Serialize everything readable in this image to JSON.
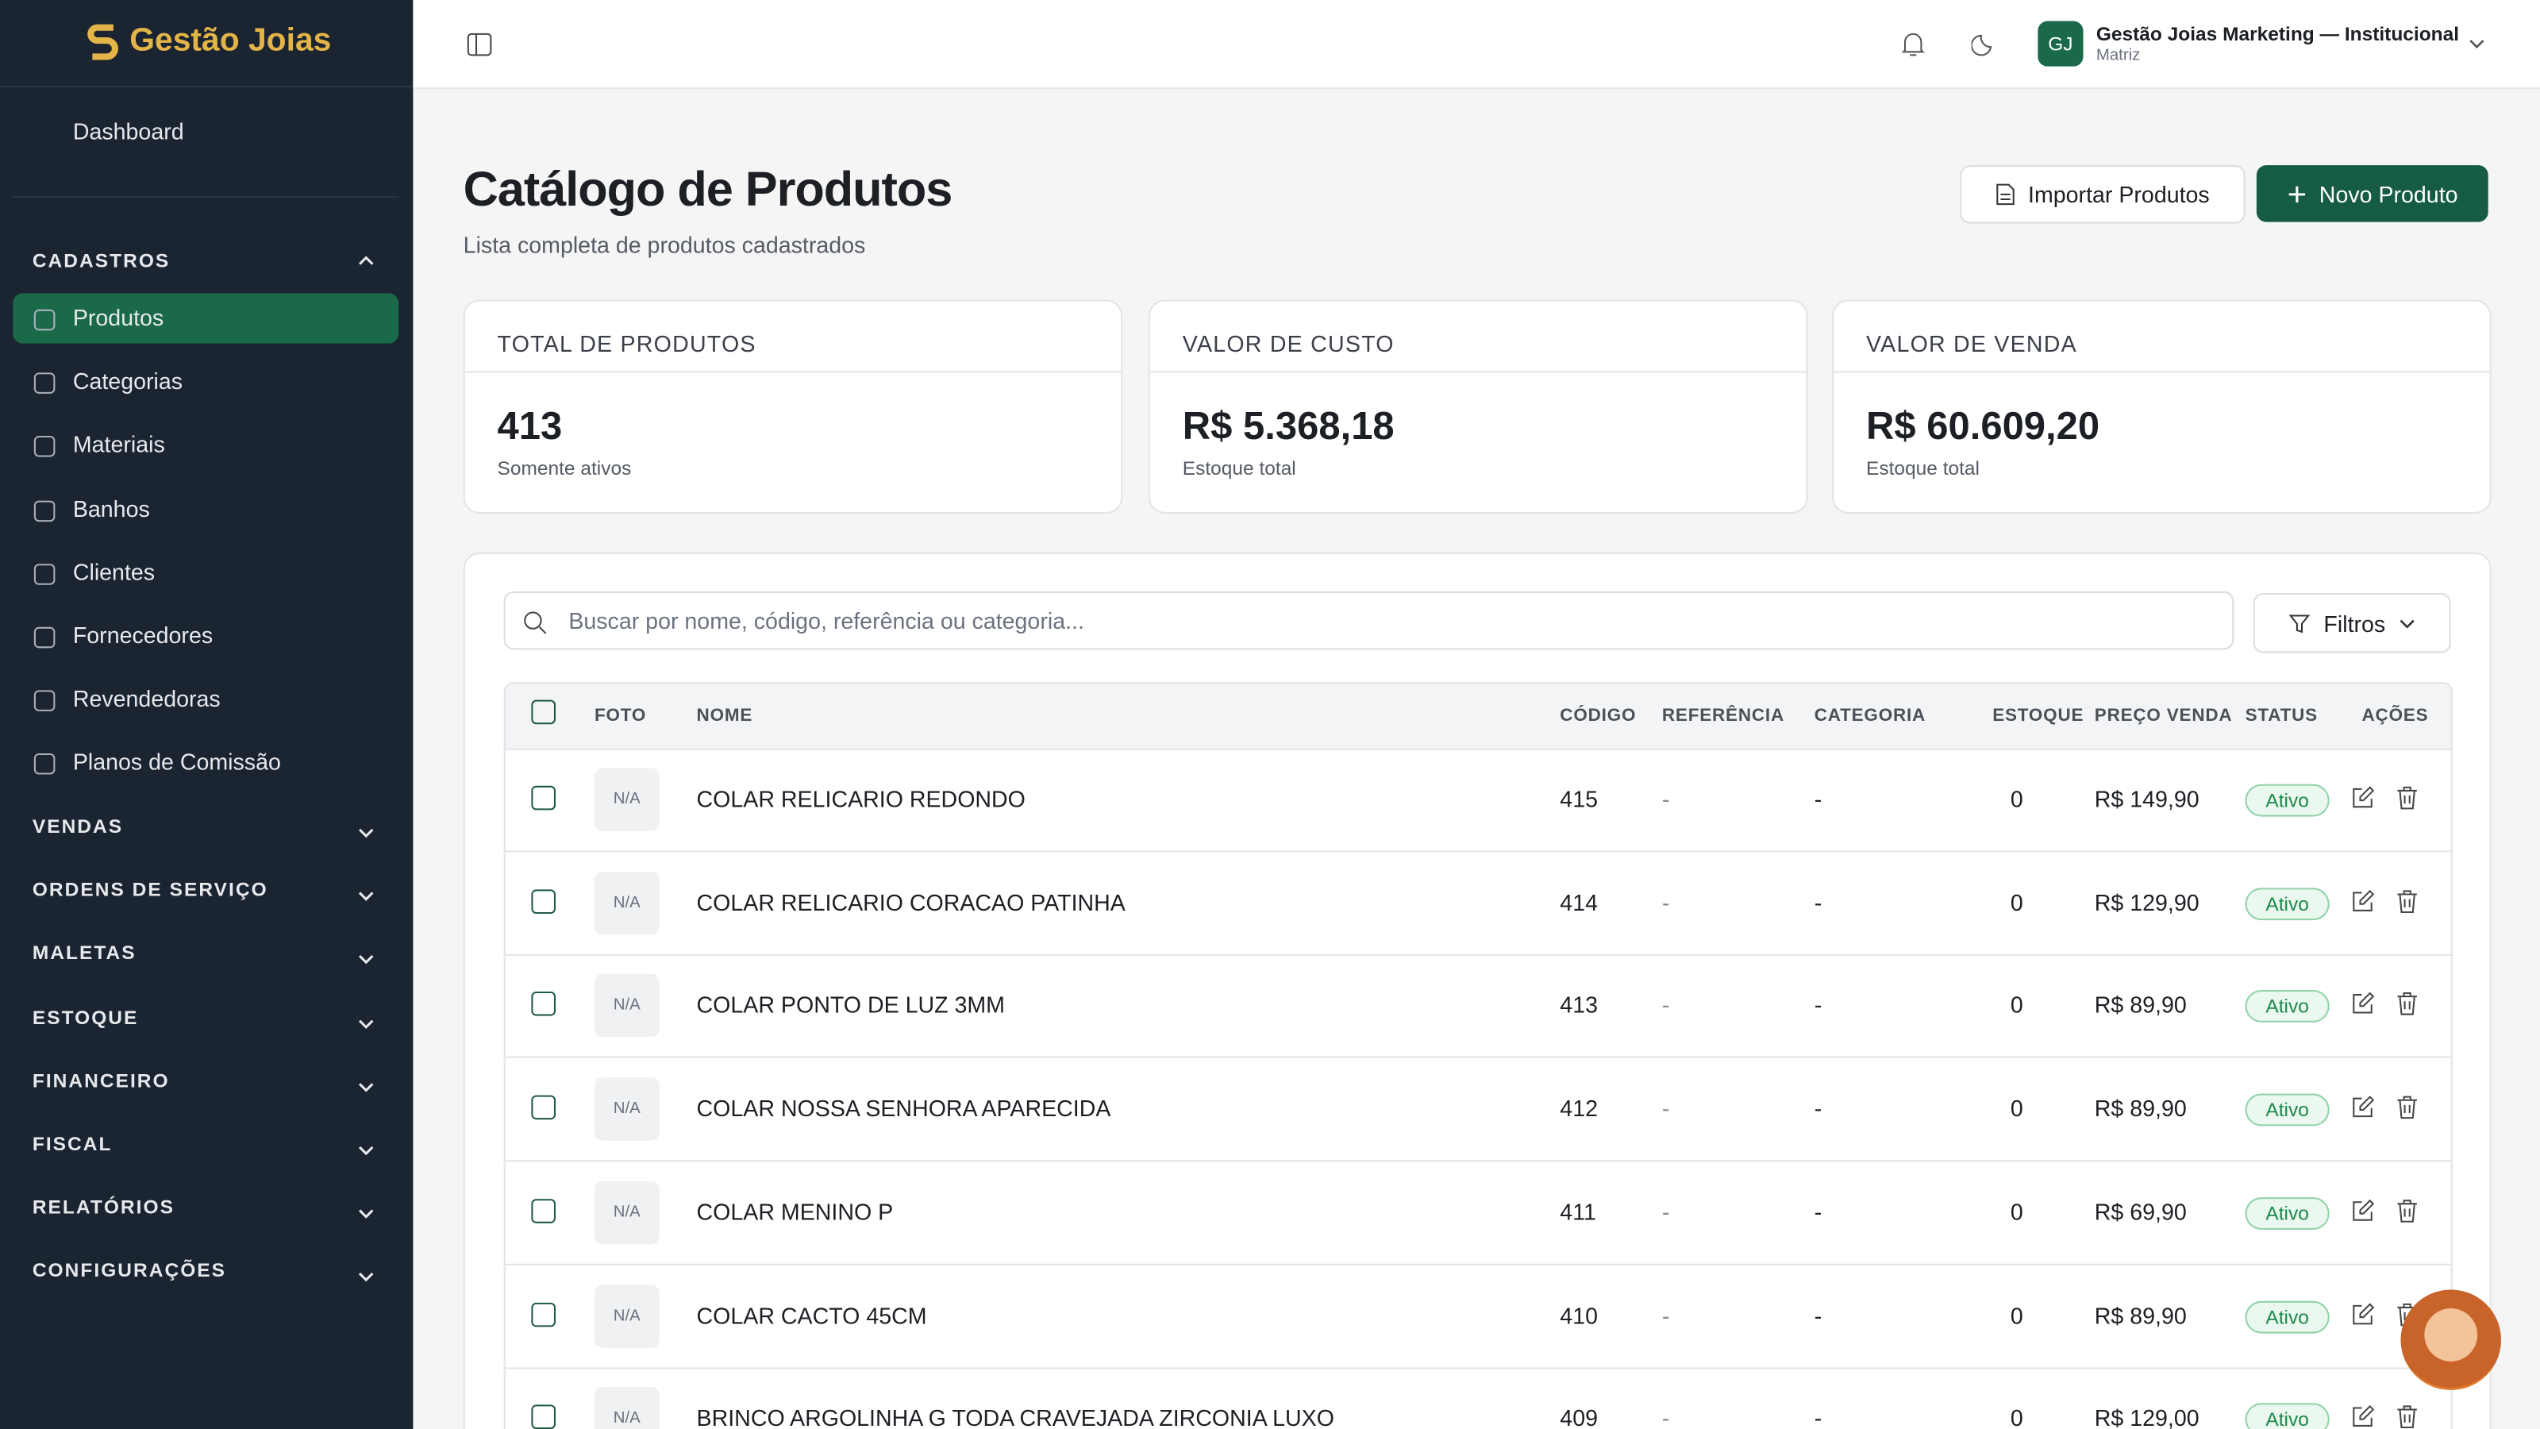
{
  "sidebar": {
    "brand": "Gestão Joias",
    "dashboard": "Dashboard",
    "cadastros": {
      "title": "CADASTROS",
      "items": [
        "Produtos",
        "Categorias",
        "Materiais",
        "Banhos",
        "Clientes",
        "Fornecedores",
        "Revendedoras",
        "Planos de Comissão"
      ]
    },
    "groups": [
      "VENDAS",
      "ORDENS DE SERVIÇO",
      "MALETAS",
      "ESTOQUE",
      "FINANCEIRO",
      "FISCAL",
      "RELATÓRIOS",
      "CONFIGURAÇÕES"
    ]
  },
  "topbar": {
    "avatar": "GJ",
    "company": "Gestão Joias Marketing — Institucional",
    "branch": "Matriz"
  },
  "page": {
    "title": "Catálogo de Produtos",
    "subtitle": "Lista completa de produtos cadastrados",
    "import_button": "Importar Produtos",
    "new_button": "Novo Produto"
  },
  "stats": [
    {
      "label": "TOTAL DE PRODUTOS",
      "value": "413",
      "note": "Somente ativos"
    },
    {
      "label": "VALOR DE CUSTO",
      "value": "R$ 5.368,18",
      "note": "Estoque total"
    },
    {
      "label": "VALOR DE VENDA",
      "value": "R$ 60.609,20",
      "note": "Estoque total"
    }
  ],
  "table": {
    "search_placeholder": "Buscar por nome, código, referência ou categoria...",
    "filter": "Filtros",
    "columns": [
      "FOTO",
      "NOME",
      "CÓDIGO",
      "REFERÊNCIA",
      "CATEGORIA",
      "ESTOQUE",
      "PREÇO VENDA",
      "STATUS",
      "AÇÕES"
    ],
    "rows": [
      [
        "N/A",
        "COLAR RELICARIO REDONDO",
        "415",
        "-",
        "-",
        "0",
        "R$ 149,90",
        "Ativo"
      ],
      [
        "N/A",
        "COLAR RELICARIO CORACAO PATINHA",
        "414",
        "-",
        "-",
        "0",
        "R$ 129,90",
        "Ativo"
      ],
      [
        "N/A",
        "COLAR PONTO DE LUZ 3MM",
        "413",
        "-",
        "-",
        "0",
        "R$ 89,90",
        "Ativo"
      ],
      [
        "N/A",
        "COLAR NOSSA SENHORA APARECIDA",
        "412",
        "-",
        "-",
        "0",
        "R$ 89,90",
        "Ativo"
      ],
      [
        "N/A",
        "COLAR MENINO P",
        "411",
        "-",
        "-",
        "0",
        "R$ 69,90",
        "Ativo"
      ],
      [
        "N/A",
        "COLAR CACTO 45CM",
        "410",
        "-",
        "-",
        "0",
        "R$ 89,90",
        "Ativo"
      ],
      [
        "N/A",
        "BRINCO ARGOLINHA G TODA CRAVEJADA ZIRCONIA LUXO",
        "409",
        "-",
        "-",
        "0",
        "R$ 129,00",
        "Ativo"
      ]
    ]
  }
}
